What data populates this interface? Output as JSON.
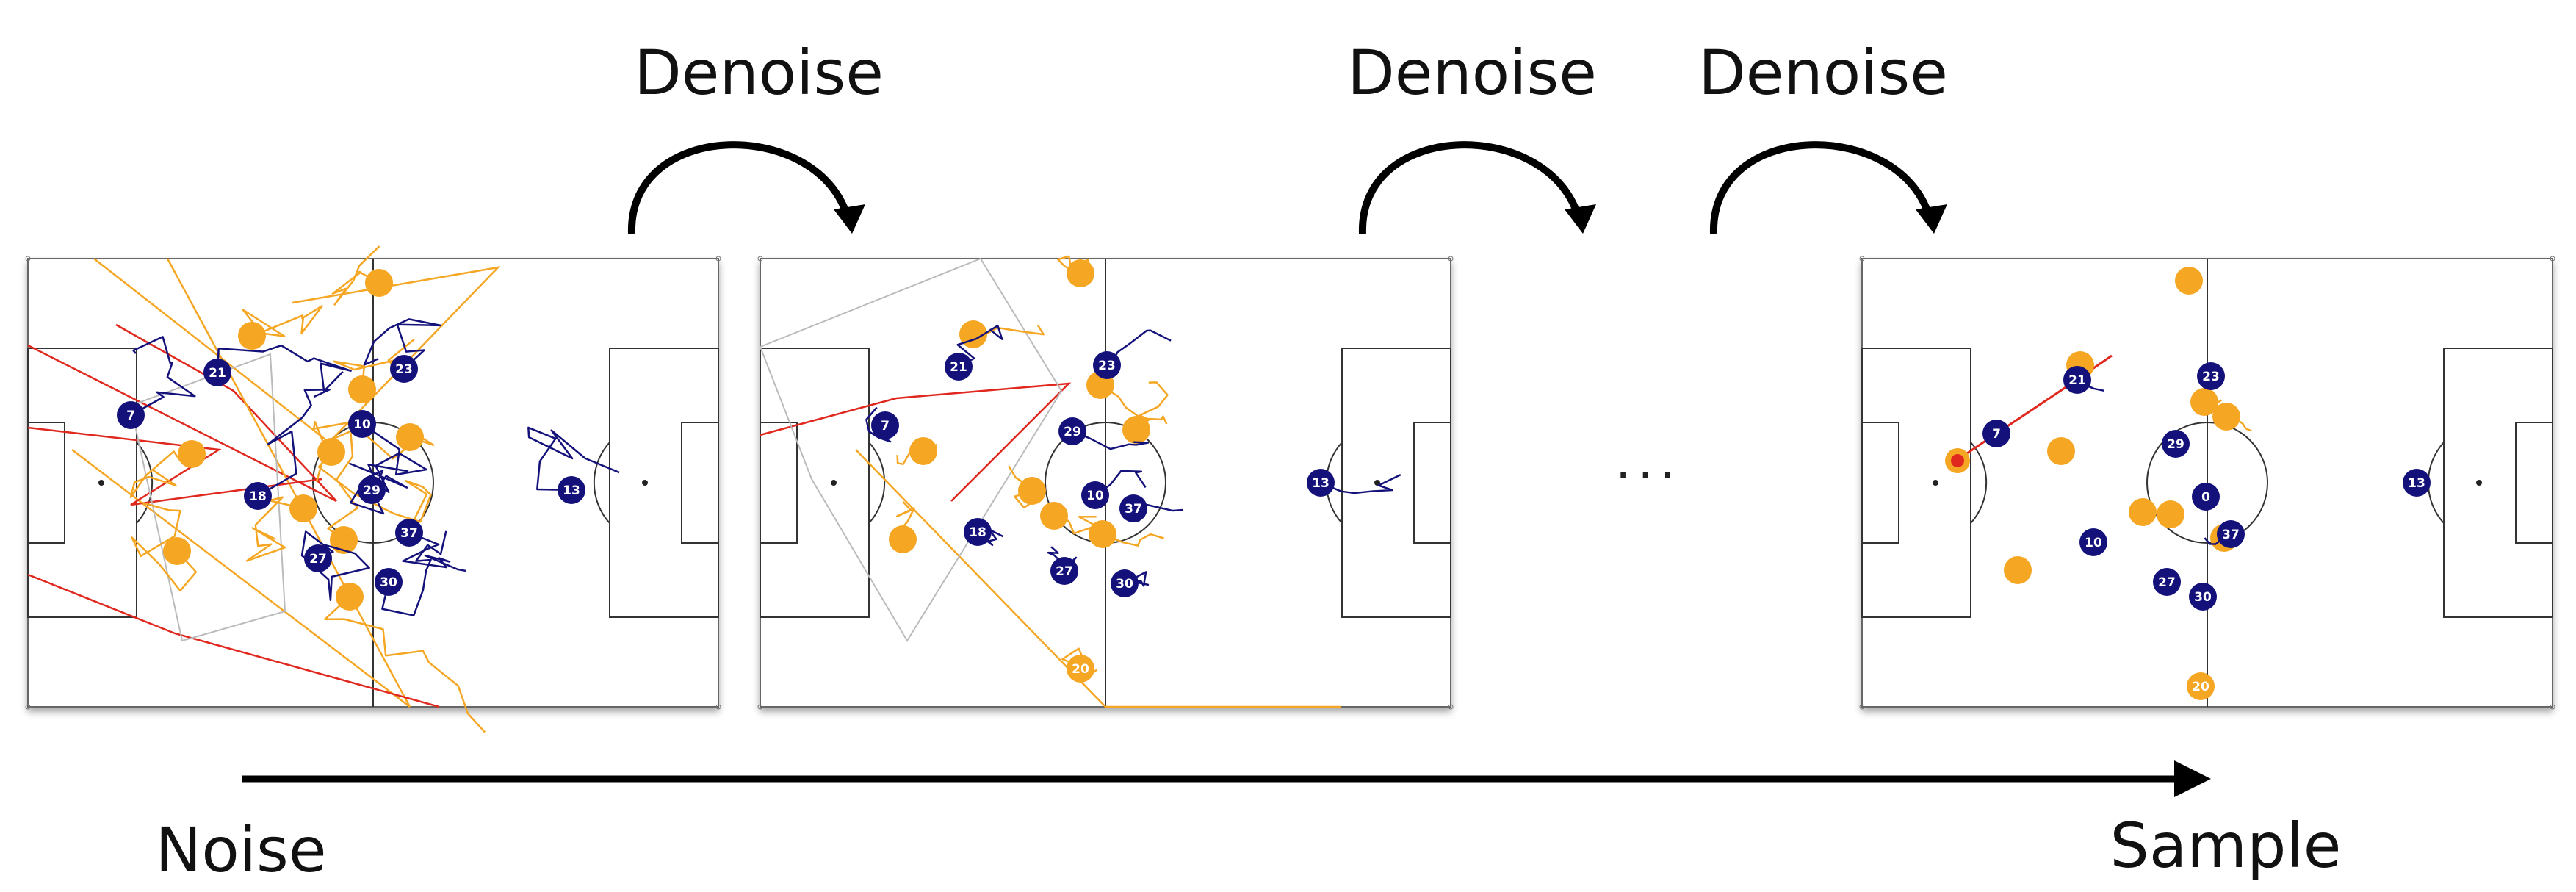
{
  "labels": {
    "denoise_1": "Denoise",
    "denoise_2": "Denoise",
    "denoise_3": "Denoise",
    "ellipsis": "...",
    "noise": "Noise",
    "sample": "Sample"
  },
  "colors": {
    "home_team": "#14127a",
    "away_team": "#f5a623",
    "ball_trail": "#e0281e",
    "pitch_line": "#333333",
    "arrow": "#000000"
  },
  "pitches": [
    {
      "name": "noise",
      "home": [
        "21",
        "23",
        "7",
        "18",
        "10",
        "37",
        "27",
        "30",
        "13",
        "29"
      ],
      "away": [
        "",
        "",
        "",
        "",
        "",
        "",
        "",
        "",
        "",
        ""
      ]
    },
    {
      "name": "intermediate",
      "home": [
        "21",
        "23",
        "7",
        "29",
        "18",
        "10",
        "37",
        "27",
        "30",
        "13"
      ],
      "away": [
        "",
        "",
        "",
        "",
        "",
        "",
        "",
        "",
        "",
        "20"
      ]
    },
    {
      "name": "sample",
      "home": [
        "7",
        "21",
        "23",
        "29",
        "0",
        "10",
        "37",
        "27",
        "30",
        "13"
      ],
      "away": [
        "",
        "",
        "",
        "",
        "",
        "",
        "",
        "",
        "",
        "20"
      ]
    }
  ]
}
